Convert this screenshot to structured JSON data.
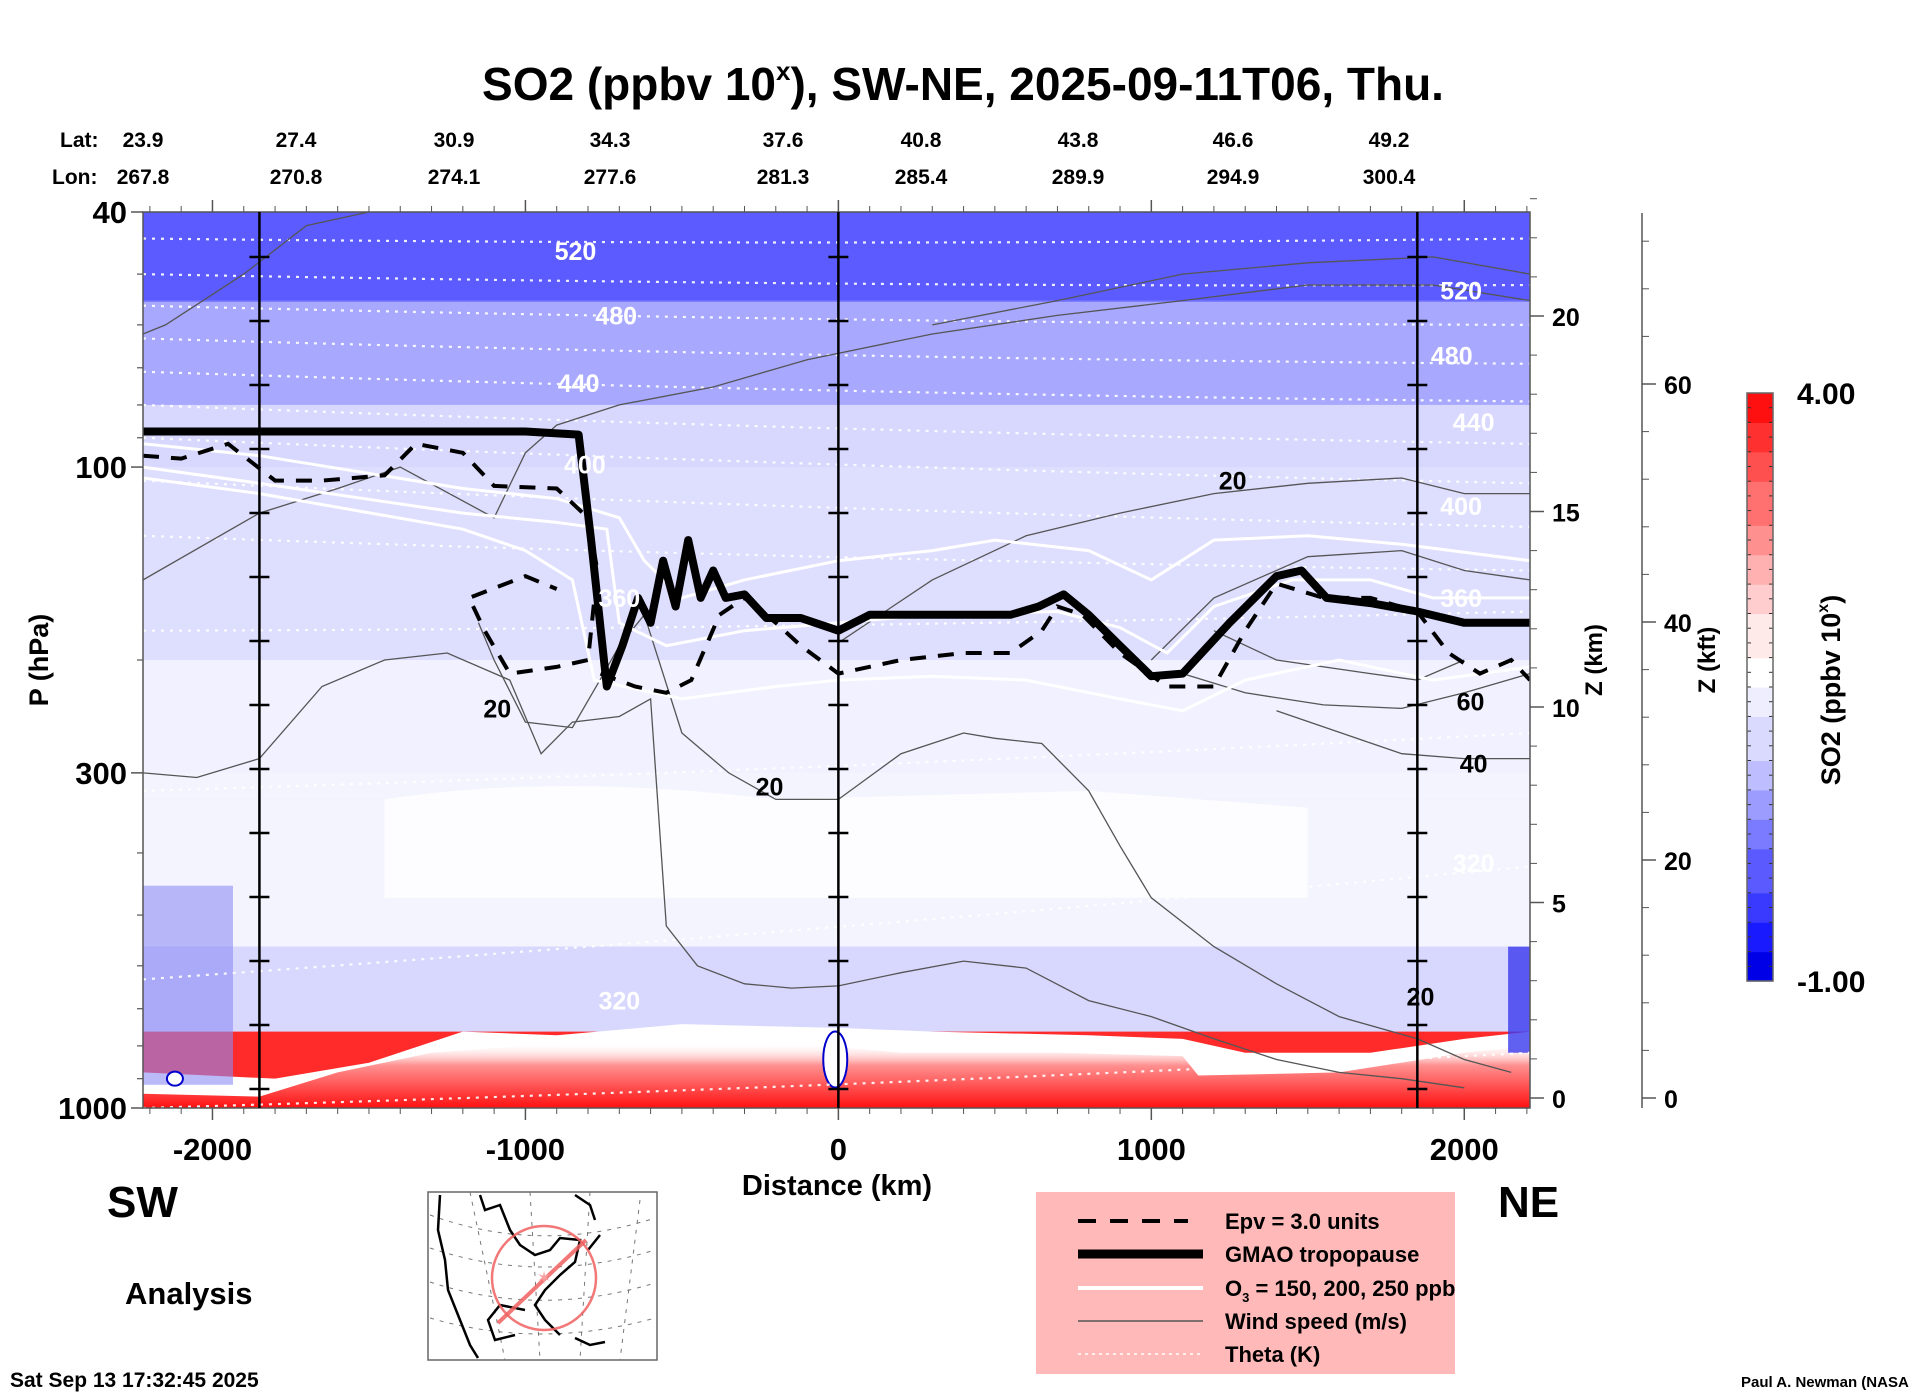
{
  "chart_data": {
    "type": "heatmap",
    "title": "SO2 (ppbv 10",
    "title_superscript": "x",
    "title_suffix": "), SW-NE, 2025-09-11T06, Thu.",
    "lat_label": "Lat:",
    "lon_label": "Lon:",
    "lat_values": [
      "23.9",
      "27.4",
      "30.9",
      "34.3",
      "37.6",
      "40.8",
      "43.8",
      "46.6",
      "49.2"
    ],
    "lon_values": [
      "267.8",
      "270.8",
      "274.1",
      "277.6",
      "281.3",
      "285.4",
      "289.9",
      "294.9",
      "300.4"
    ],
    "xlabel": "Distance (km)",
    "xlim": [
      -2222,
      2210
    ],
    "xticks": [
      -2000,
      -1000,
      0,
      1000,
      2000
    ],
    "xtick_labels": [
      "-2000",
      "-1000",
      "0",
      "1000",
      "2000"
    ],
    "ylabel": "P (hPa)",
    "yscale": "log",
    "ylim": [
      1000,
      40
    ],
    "yticks": [
      40,
      100,
      300,
      1000
    ],
    "ytick_labels": [
      "40",
      "100",
      "300",
      "1000"
    ],
    "y2label": "Z (km)",
    "y2ticks": [
      0,
      5,
      10,
      15,
      20
    ],
    "y2tick_labels": [
      "0",
      "5",
      "10",
      "15",
      "20"
    ],
    "y3label": "Z (kft)",
    "y3ticks": [
      0,
      20,
      40,
      60
    ],
    "y3tick_labels": [
      "0",
      "20",
      "40",
      "60"
    ],
    "vertical_markers_km": [
      -1850,
      0,
      1850
    ],
    "colorbar": {
      "label": "SO2 (ppbv 10",
      "label_superscript": "x",
      "label_suffix": ")",
      "min": -1.0,
      "max": 4.0,
      "min_label": "-1.00",
      "max_label": "4.00",
      "colors": [
        "#0000e6",
        "#2a2aff",
        "#6a6aff",
        "#a8a8ff",
        "#d8d8ff",
        "#f4f4ff",
        "#ffffff",
        "#fff0f0",
        "#ffc8c8",
        "#ff9a9a",
        "#ff6262",
        "#ff2a2a",
        "#ff0d0d"
      ]
    },
    "side_labels": {
      "left": "SW",
      "right": "NE"
    },
    "mode_label": "Analysis",
    "theta_labels": [
      {
        "text": "520",
        "km": -840,
        "p": 46
      },
      {
        "text": "480",
        "km": -710,
        "p": 58
      },
      {
        "text": "440",
        "km": -830,
        "p": 74
      },
      {
        "text": "400",
        "km": -810,
        "p": 99
      },
      {
        "text": "360",
        "km": -700,
        "p": 160
      },
      {
        "text": "520",
        "km": 1990,
        "p": 53
      },
      {
        "text": "480",
        "km": 1960,
        "p": 67
      },
      {
        "text": "440",
        "km": 2030,
        "p": 85
      },
      {
        "text": "400",
        "km": 1990,
        "p": 115
      },
      {
        "text": "360",
        "km": 1990,
        "p": 160
      },
      {
        "text": "320",
        "km": -700,
        "p": 680
      },
      {
        "text": "320",
        "km": 2030,
        "p": 415
      }
    ],
    "wind_labels": [
      {
        "text": "20",
        "km": 1260,
        "p": 105
      },
      {
        "text": "20",
        "km": -1090,
        "p": 238
      },
      {
        "text": "20",
        "km": -220,
        "p": 315
      },
      {
        "text": "60",
        "km": 2020,
        "p": 232
      },
      {
        "text": "40",
        "km": 2030,
        "p": 290
      },
      {
        "text": "20",
        "km": 1860,
        "p": 670
      }
    ],
    "tropopause": [
      [
        -2222,
        88
      ],
      [
        -1000,
        88
      ],
      [
        -830,
        89
      ],
      [
        -790,
        130
      ],
      [
        -740,
        220
      ],
      [
        -690,
        190
      ],
      [
        -640,
        160
      ],
      [
        -600,
        175
      ],
      [
        -560,
        140
      ],
      [
        -520,
        165
      ],
      [
        -480,
        130
      ],
      [
        -440,
        160
      ],
      [
        -400,
        145
      ],
      [
        -360,
        160
      ],
      [
        -300,
        158
      ],
      [
        -230,
        172
      ],
      [
        -120,
        172
      ],
      [
        0,
        180
      ],
      [
        100,
        170
      ],
      [
        300,
        170
      ],
      [
        550,
        170
      ],
      [
        640,
        165
      ],
      [
        720,
        158
      ],
      [
        800,
        170
      ],
      [
        900,
        190
      ],
      [
        1000,
        212
      ],
      [
        1100,
        210
      ],
      [
        1250,
        175
      ],
      [
        1400,
        148
      ],
      [
        1480,
        145
      ],
      [
        1560,
        160
      ],
      [
        1700,
        163
      ],
      [
        1850,
        168
      ],
      [
        2000,
        175
      ],
      [
        2210,
        175
      ]
    ],
    "epv_contour": [
      [
        -2222,
        96
      ],
      [
        -2100,
        97
      ],
      [
        -1950,
        92
      ],
      [
        -1800,
        105
      ],
      [
        -1650,
        105
      ],
      [
        -1450,
        103
      ],
      [
        -1350,
        92
      ],
      [
        -1200,
        95
      ],
      [
        -1100,
        107
      ],
      [
        -900,
        108
      ],
      [
        -800,
        120
      ],
      [
        -770,
        145
      ],
      [
        -800,
        200
      ],
      [
        -900,
        205
      ],
      [
        -1050,
        210
      ],
      [
        -1130,
        180
      ],
      [
        -1180,
        160
      ],
      [
        -1000,
        148
      ],
      [
        -900,
        155
      ]
    ],
    "epv_contour_2": [
      [
        -760,
        210
      ],
      [
        -650,
        220
      ],
      [
        -550,
        225
      ],
      [
        -470,
        215
      ],
      [
        -380,
        170
      ],
      [
        -300,
        160
      ],
      [
        -200,
        175
      ],
      [
        -120,
        190
      ],
      [
        0,
        210
      ],
      [
        200,
        200
      ],
      [
        400,
        195
      ],
      [
        550,
        195
      ],
      [
        650,
        180
      ],
      [
        700,
        165
      ],
      [
        780,
        170
      ],
      [
        900,
        195
      ],
      [
        1050,
        220
      ],
      [
        1200,
        220
      ],
      [
        1300,
        180
      ],
      [
        1400,
        152
      ],
      [
        1550,
        160
      ],
      [
        1700,
        160
      ],
      [
        1850,
        168
      ],
      [
        1950,
        195
      ],
      [
        2050,
        210
      ],
      [
        2150,
        200
      ],
      [
        2210,
        215
      ]
    ],
    "o3_lines": [
      [
        [
          -2222,
          92
        ],
        [
          -1850,
          96
        ],
        [
          -1200,
          108
        ],
        [
          -900,
          112
        ],
        [
          -700,
          120
        ],
        [
          -620,
          140
        ],
        [
          -500,
          160
        ],
        [
          -300,
          150
        ],
        [
          0,
          140
        ],
        [
          300,
          135
        ],
        [
          500,
          130
        ],
        [
          800,
          135
        ],
        [
          1000,
          150
        ],
        [
          1200,
          130
        ],
        [
          1500,
          128
        ],
        [
          1800,
          132
        ],
        [
          2210,
          140
        ]
      ],
      [
        [
          -2222,
          100
        ],
        [
          -1850,
          106
        ],
        [
          -1200,
          118
        ],
        [
          -900,
          122
        ],
        [
          -740,
          125
        ],
        [
          -700,
          175
        ],
        [
          -550,
          190
        ],
        [
          -300,
          180
        ],
        [
          0,
          175
        ],
        [
          300,
          170
        ],
        [
          700,
          168
        ],
        [
          900,
          178
        ],
        [
          1050,
          195
        ],
        [
          1200,
          165
        ],
        [
          1450,
          150
        ],
        [
          1700,
          150
        ],
        [
          1900,
          160
        ],
        [
          2210,
          160
        ]
      ],
      [
        [
          -2222,
          104
        ],
        [
          -1850,
          110
        ],
        [
          -1200,
          125
        ],
        [
          -1000,
          135
        ],
        [
          -850,
          150
        ],
        [
          -780,
          215
        ],
        [
          -500,
          230
        ],
        [
          -200,
          220
        ],
        [
          0,
          215
        ],
        [
          300,
          212
        ],
        [
          600,
          215
        ],
        [
          900,
          230
        ],
        [
          1100,
          240
        ],
        [
          1300,
          215
        ],
        [
          1600,
          200
        ],
        [
          1900,
          215
        ],
        [
          2210,
          205
        ]
      ]
    ],
    "wind_contours": [
      [
        [
          -2222,
          62
        ],
        [
          -2150,
          60
        ],
        [
          -1900,
          50
        ],
        [
          -1700,
          42
        ],
        [
          -1500,
          40
        ]
      ],
      [
        [
          -2222,
          150
        ],
        [
          -1850,
          118
        ],
        [
          -1600,
          108
        ],
        [
          -1400,
          100
        ],
        [
          -1100,
          120
        ],
        [
          -1000,
          95
        ],
        [
          -900,
          86
        ],
        [
          -700,
          80
        ],
        [
          -400,
          75
        ],
        [
          -100,
          68
        ],
        [
          300,
          62
        ],
        [
          700,
          58
        ],
        [
          1100,
          55
        ],
        [
          1500,
          52
        ],
        [
          1900,
          52
        ],
        [
          2210,
          55
        ]
      ],
      [
        [
          -2222,
          300
        ],
        [
          -2050,
          305
        ],
        [
          -1850,
          285
        ],
        [
          -1650,
          220
        ],
        [
          -1450,
          200
        ],
        [
          -1250,
          195
        ],
        [
          -1050,
          215
        ],
        [
          -950,
          280
        ],
        [
          -850,
          250
        ],
        [
          -700,
          245
        ],
        [
          -600,
          230
        ],
        [
          -550,
          520
        ],
        [
          -450,
          600
        ],
        [
          -300,
          640
        ],
        [
          -150,
          650
        ],
        [
          0,
          645
        ],
        [
          200,
          615
        ],
        [
          400,
          590
        ],
        [
          600,
          605
        ],
        [
          800,
          680
        ],
        [
          1000,
          720
        ],
        [
          1200,
          780
        ],
        [
          1400,
          840
        ],
        [
          1600,
          880
        ],
        [
          1800,
          900
        ],
        [
          2000,
          930
        ]
      ],
      [
        [
          -1150,
          175
        ],
        [
          -1100,
          200
        ],
        [
          -1000,
          250
        ],
        [
          -850,
          255
        ],
        [
          -750,
          210
        ],
        [
          -700,
          190
        ],
        [
          -620,
          170
        ],
        [
          -500,
          260
        ],
        [
          -350,
          300
        ],
        [
          -200,
          330
        ],
        [
          0,
          330
        ],
        [
          200,
          280
        ],
        [
          400,
          260
        ],
        [
          500,
          265
        ],
        [
          650,
          270
        ],
        [
          800,
          320
        ],
        [
          900,
          390
        ],
        [
          1000,
          470
        ],
        [
          1200,
          560
        ],
        [
          1400,
          640
        ],
        [
          1600,
          720
        ],
        [
          1850,
          780
        ],
        [
          2000,
          840
        ],
        [
          2150,
          880
        ]
      ],
      [
        [
          0,
          188
        ],
        [
          300,
          150
        ],
        [
          600,
          128
        ],
        [
          900,
          118
        ],
        [
          1200,
          110
        ],
        [
          1500,
          106
        ],
        [
          1800,
          104
        ],
        [
          2000,
          110
        ],
        [
          2210,
          110
        ]
      ],
      [
        [
          1000,
          200
        ],
        [
          1200,
          160
        ],
        [
          1500,
          138
        ],
        [
          1800,
          135
        ],
        [
          2000,
          145
        ],
        [
          2210,
          150
        ]
      ],
      [
        [
          1100,
          210
        ],
        [
          1300,
          225
        ],
        [
          1550,
          235
        ],
        [
          1800,
          238
        ],
        [
          2000,
          225
        ],
        [
          2210,
          210
        ]
      ],
      [
        [
          1200,
          180
        ],
        [
          1400,
          200
        ],
        [
          1700,
          210
        ],
        [
          1850,
          215
        ],
        [
          2000,
          200
        ]
      ],
      [
        [
          300,
          60
        ],
        [
          700,
          55
        ],
        [
          1100,
          50
        ],
        [
          1500,
          48
        ],
        [
          1900,
          47
        ],
        [
          2210,
          50
        ]
      ],
      [
        [
          1400,
          240
        ],
        [
          1800,
          280
        ],
        [
          2000,
          285
        ],
        [
          2210,
          285
        ]
      ]
    ],
    "theta_lines": [
      {
        "p0": 44,
        "p1": 44
      },
      {
        "p0": 50,
        "p1": 52
      },
      {
        "p0": 56,
        "p1": 60
      },
      {
        "p0": 63,
        "p1": 69
      },
      {
        "p0": 71,
        "p1": 79
      },
      {
        "p0": 80,
        "p1": 92
      },
      {
        "p0": 90,
        "p1": 106
      },
      {
        "p0": 105,
        "p1": 124
      },
      {
        "p0": 128,
        "p1": 145
      },
      {
        "p0": 180,
        "p1": 168
      },
      {
        "p0": 320,
        "p1": 260
      },
      {
        "p0": 630,
        "p1": 420
      },
      {
        "p0": 1000,
        "p1": 820
      }
    ],
    "field_bands": [
      {
        "p_top": 40,
        "p_bot": 55,
        "value": -0.2
      },
      {
        "p_top": 55,
        "p_bot": 80,
        "value": 0.3
      },
      {
        "p_top": 80,
        "p_bot": 200,
        "value": 0.7
      },
      {
        "p_top": 200,
        "p_bot": 330,
        "value": 1.2
      },
      {
        "p_top": 330,
        "p_bot": 560,
        "value": 0.95
      },
      {
        "p_top": 560,
        "p_bot": 760,
        "value": 0.85
      },
      {
        "p_top": 760,
        "p_bot": 1000,
        "value": 3.6
      }
    ]
  },
  "footer": {
    "timestamp": "Sat Sep 13 17:32:45 2025",
    "credit": "Paul A. Newman (NASA"
  },
  "legend": {
    "items": [
      {
        "label": "Epv = 3.0 units",
        "style": "dashed"
      },
      {
        "label": "GMAO tropopause",
        "style": "thick"
      },
      {
        "label": "O",
        "sub": "3",
        "suffix": " = 150, 200, 250 ppb",
        "style": "white"
      },
      {
        "label": "Wind speed (m/s)",
        "style": "thin"
      },
      {
        "label": "Theta (K)",
        "style": "dotted"
      }
    ],
    "background": "#ffb9b9"
  },
  "inset_map": {
    "label": "location-map"
  }
}
